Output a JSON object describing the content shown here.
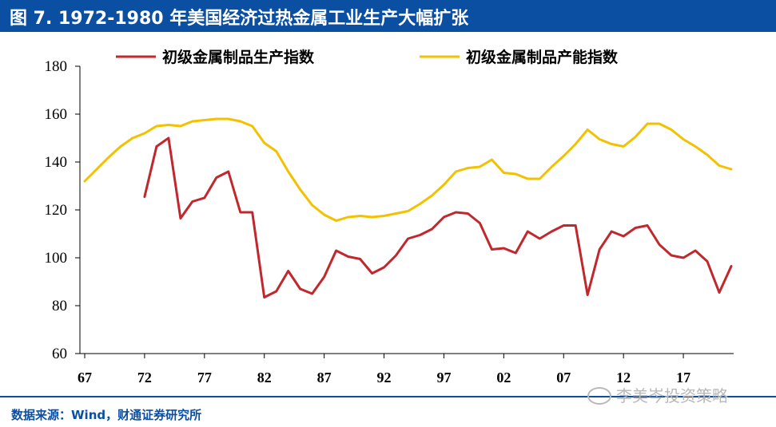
{
  "header": {
    "title": "图 7. 1972-1980 年美国经济过热金属工业生产大幅扩张"
  },
  "footer": {
    "source": "数据来源：Wind，财通证券研究所",
    "watermark": "李美岑投资策略"
  },
  "colors": {
    "title_bg": "#0b4fa3",
    "production": "#c0282d",
    "capacity": "#f2c200"
  },
  "chart_data": {
    "type": "line",
    "title": "",
    "xlabel": "",
    "ylabel": "",
    "xlim": [
      1967,
      2022
    ],
    "ylim": [
      60,
      180
    ],
    "yticks": [
      60,
      80,
      100,
      120,
      140,
      160,
      180
    ],
    "xticks": [
      {
        "year": 1967,
        "label": "67"
      },
      {
        "year": 1972,
        "label": "72"
      },
      {
        "year": 1977,
        "label": "77"
      },
      {
        "year": 1982,
        "label": "82"
      },
      {
        "year": 1987,
        "label": "87"
      },
      {
        "year": 1992,
        "label": "92"
      },
      {
        "year": 1997,
        "label": "97"
      },
      {
        "year": 2002,
        "label": "02"
      },
      {
        "year": 2007,
        "label": "07"
      },
      {
        "year": 2012,
        "label": "12"
      },
      {
        "year": 2017,
        "label": "17"
      }
    ],
    "legend_position": "top",
    "series": [
      {
        "name": "初级金属制品生产指数",
        "color": "#c0282d",
        "x": [
          1972,
          1973,
          1974,
          1975,
          1976,
          1977,
          1978,
          1979,
          1980,
          1981,
          1982,
          1983,
          1984,
          1985,
          1986,
          1987,
          1988,
          1989,
          1990,
          1991,
          1992,
          1993,
          1994,
          1995,
          1996,
          1997,
          1998,
          1999,
          2000,
          2001,
          2002,
          2003,
          2004,
          2005,
          2006,
          2007,
          2008,
          2009,
          2010,
          2011,
          2012,
          2013,
          2014,
          2015,
          2016,
          2017,
          2018,
          2019,
          2020,
          2021
        ],
        "y": [
          125.5,
          146.5,
          150,
          116.5,
          123.5,
          125,
          133.5,
          136,
          119,
          119,
          83.5,
          86,
          94.5,
          87,
          85,
          92,
          103,
          100.5,
          99.5,
          93.5,
          96,
          101,
          108,
          109.5,
          112,
          117,
          119,
          118.5,
          114.5,
          103.5,
          104,
          102,
          111,
          108,
          111,
          113.5,
          113.5,
          84.5,
          103.5,
          111,
          109,
          112.5,
          113.5,
          105.5,
          101,
          100,
          103,
          98.5,
          85.5,
          96.5
        ]
      },
      {
        "name": "初级金属制品产能指数",
        "color": "#f2c200",
        "x": [
          1967,
          1968,
          1969,
          1970,
          1971,
          1972,
          1973,
          1974,
          1975,
          1976,
          1977,
          1978,
          1979,
          1980,
          1981,
          1982,
          1983,
          1984,
          1985,
          1986,
          1987,
          1988,
          1989,
          1990,
          1991,
          1992,
          1993,
          1994,
          1995,
          1996,
          1997,
          1998,
          1999,
          2000,
          2001,
          2002,
          2003,
          2004,
          2005,
          2006,
          2007,
          2008,
          2009,
          2010,
          2011,
          2012,
          2013,
          2014,
          2015,
          2016,
          2017,
          2018,
          2019,
          2020,
          2021
        ],
        "y": [
          132,
          137,
          142,
          146.5,
          150,
          152,
          155,
          155.5,
          155,
          157,
          157.5,
          158,
          158,
          157,
          155,
          148,
          144.5,
          136,
          128.5,
          122,
          118,
          115.5,
          117,
          117.5,
          117,
          117.5,
          118.5,
          119.5,
          122.5,
          126,
          130.5,
          136,
          137.5,
          138,
          141,
          135.5,
          135,
          133,
          133,
          138,
          142.5,
          147.5,
          153.5,
          149.5,
          147.5,
          146.5,
          150.5,
          156,
          156,
          153.5,
          149.5,
          146.5,
          143,
          138.5,
          137
        ]
      }
    ]
  }
}
